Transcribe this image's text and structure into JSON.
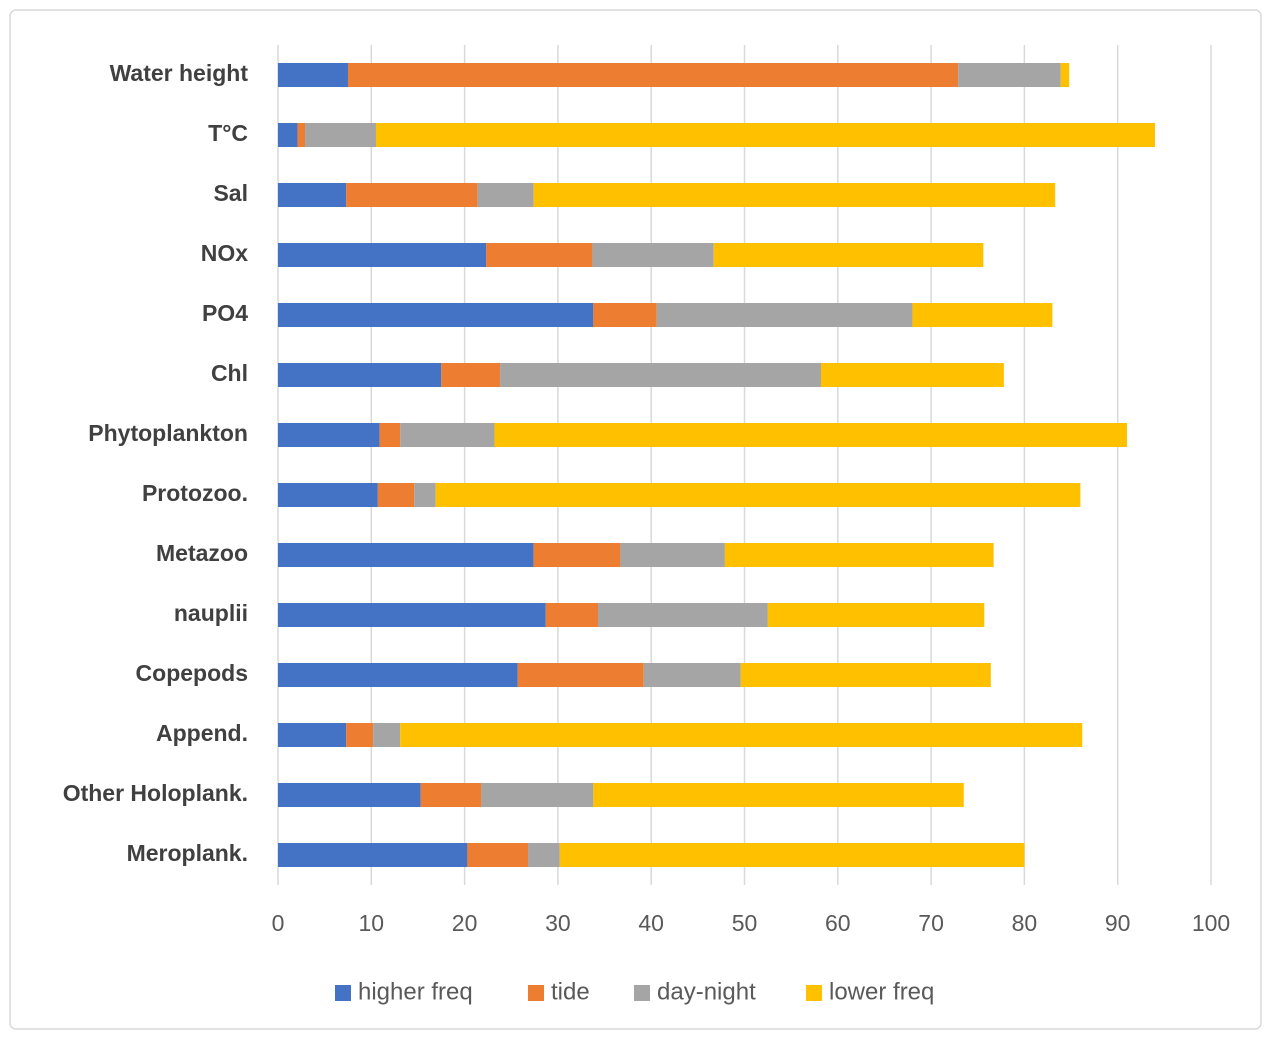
{
  "chart_data": {
    "type": "stacked-bar-horizontal",
    "categories": [
      "Water height",
      "T°C",
      "Sal",
      "NOx",
      "PO4",
      "Chl",
      "Phytoplankton",
      "Protozoo.",
      "Metazoo",
      "nauplii",
      "Copepods",
      "Append.",
      "Other Holoplank.",
      "Meroplank."
    ],
    "series": [
      {
        "name": "higher freq",
        "color": "#4472c4",
        "values": [
          7.5,
          2.1,
          7.3,
          22.3,
          33.8,
          17.5,
          10.9,
          10.7,
          27.4,
          28.7,
          25.7,
          7.3,
          15.3,
          20.3
        ]
      },
      {
        "name": "tide",
        "color": "#ed7d31",
        "values": [
          65.4,
          0.8,
          14.1,
          11.4,
          6.8,
          6.3,
          2.2,
          3.9,
          9.3,
          5.6,
          13.5,
          2.9,
          6.5,
          6.5
        ]
      },
      {
        "name": "day-night",
        "color": "#a5a5a5",
        "values": [
          11.0,
          7.6,
          6.0,
          13.0,
          27.4,
          34.4,
          10.1,
          2.3,
          11.2,
          18.2,
          10.4,
          2.9,
          12.0,
          3.4
        ]
      },
      {
        "name": "lower freq",
        "color": "#ffc000",
        "values": [
          0.9,
          83.5,
          55.9,
          28.9,
          15.0,
          19.6,
          67.8,
          69.1,
          28.8,
          23.2,
          26.8,
          73.1,
          39.7,
          49.8
        ]
      }
    ],
    "xlim": [
      0,
      100
    ],
    "xticks": [
      0,
      10,
      20,
      30,
      40,
      50,
      60,
      70,
      80,
      90,
      100
    ],
    "grid": true,
    "legend": "bottom"
  }
}
